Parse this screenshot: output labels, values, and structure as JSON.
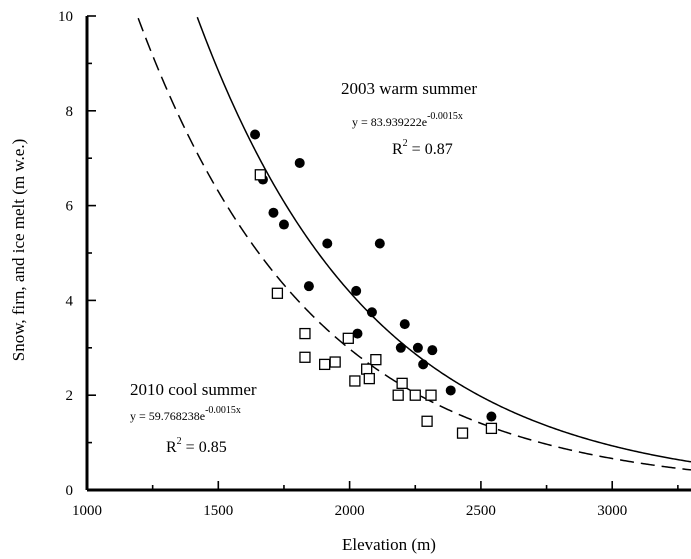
{
  "chart_data": {
    "type": "scatter",
    "xlabel": "Elevation (m)",
    "ylabel": "Snow, firn, and ice melt (m w.e.)",
    "xlim": [
      1000,
      3300
    ],
    "ylim": [
      0,
      10
    ],
    "x_ticks": [
      "1000",
      "1500",
      "2000",
      "2500",
      "3000"
    ],
    "y_ticks": [
      "0",
      "2",
      "4",
      "6",
      "8",
      "10"
    ],
    "grid": false,
    "series": [
      {
        "name": "2003 warm summer",
        "marker": "filled-circle",
        "fit": {
          "a": 83.939222,
          "b": -0.0015,
          "style": "solid"
        },
        "equation": "y = 83.939222e",
        "equation_exponent": "-0.0015x",
        "r2_label": "R",
        "r2_exp": "2",
        "r2_value": " = 0.87",
        "points": [
          [
            1640,
            7.5
          ],
          [
            1670,
            6.55
          ],
          [
            1710,
            5.85
          ],
          [
            1750,
            5.6
          ],
          [
            1810,
            6.9
          ],
          [
            1845,
            4.3
          ],
          [
            1915,
            5.2
          ],
          [
            2025,
            4.2
          ],
          [
            2030,
            3.3
          ],
          [
            2085,
            3.75
          ],
          [
            2115,
            5.2
          ],
          [
            2195,
            3.0
          ],
          [
            2210,
            3.5
          ],
          [
            2260,
            3.0
          ],
          [
            2280,
            2.65
          ],
          [
            2315,
            2.95
          ],
          [
            2385,
            2.1
          ],
          [
            2540,
            1.55
          ]
        ]
      },
      {
        "name": "2010 cool summer",
        "marker": "open-square",
        "fit": {
          "a": 59.768238,
          "b": -0.0015,
          "style": "dashed"
        },
        "equation": "y = 59.768238e",
        "equation_exponent": "-0.0015x",
        "r2_label": "R",
        "r2_exp": "2",
        "r2_value": " = 0.85",
        "points": [
          [
            1660,
            6.65
          ],
          [
            1725,
            4.15
          ],
          [
            1830,
            3.3
          ],
          [
            1830,
            2.8
          ],
          [
            1905,
            2.65
          ],
          [
            1945,
            2.7
          ],
          [
            1995,
            3.2
          ],
          [
            2020,
            2.3
          ],
          [
            2065,
            2.55
          ],
          [
            2075,
            2.35
          ],
          [
            2100,
            2.75
          ],
          [
            2185,
            2.0
          ],
          [
            2200,
            2.25
          ],
          [
            2250,
            2.0
          ],
          [
            2295,
            1.45
          ],
          [
            2310,
            2.0
          ],
          [
            2430,
            1.2
          ],
          [
            2540,
            1.3
          ]
        ]
      }
    ]
  }
}
